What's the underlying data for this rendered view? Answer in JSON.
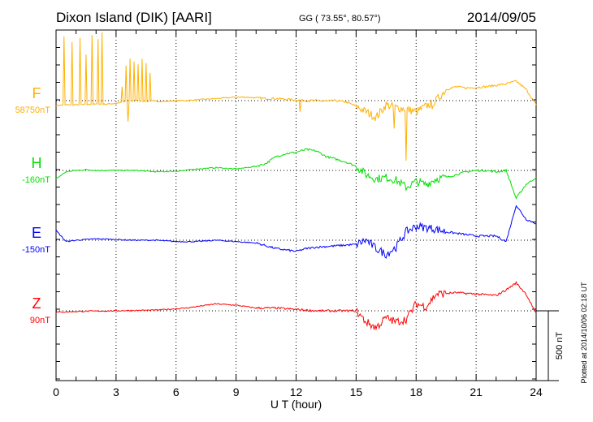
{
  "header": {
    "station": "Dixon Island (DIK)  [AARI]",
    "coords": "GG ( 73.55°,  80.57°)",
    "date": "2014/09/05"
  },
  "footer": {
    "plotted": "Plotted at 2014/10/06 02:18 UT",
    "scale_label": "500 nT"
  },
  "chart_data": {
    "type": "line",
    "xlabel": "U T (hour)",
    "xlim": [
      0,
      24
    ],
    "xticks": [
      "0",
      "3",
      "6",
      "9",
      "12",
      "15",
      "18",
      "21",
      "24"
    ],
    "scale_bar_nT": 500,
    "grid": "dotted at every 3 h and at each component baseline",
    "series": [
      {
        "name": "F",
        "baseline_label": "58750nT",
        "color": "#ffb000",
        "x_step": 0.5,
        "values": [
          -35,
          -30,
          -30,
          -28,
          -25,
          -25,
          -20,
          -5,
          0,
          -5,
          -5,
          -5,
          0,
          0,
          5,
          10,
          15,
          20,
          25,
          25,
          20,
          15,
          15,
          10,
          5,
          0,
          0,
          -5,
          0,
          -10,
          -40,
          -80,
          -120,
          -30,
          -50,
          -60,
          -80,
          -40,
          0,
          80,
          100,
          90,
          95,
          100,
          110,
          120,
          140,
          80,
          -30
        ],
        "spikes": [
          [
            0.4,
            460
          ],
          [
            0.8,
            420
          ],
          [
            1.2,
            450
          ],
          [
            1.5,
            330
          ],
          [
            1.8,
            470
          ],
          [
            2.1,
            440
          ],
          [
            2.3,
            490
          ],
          [
            3.3,
            100
          ],
          [
            3.5,
            250
          ],
          [
            3.6,
            -150
          ],
          [
            3.7,
            300
          ],
          [
            3.9,
            280
          ],
          [
            4.1,
            260
          ],
          [
            4.3,
            300
          ],
          [
            4.5,
            270
          ],
          [
            4.7,
            200
          ],
          [
            12.2,
            -80
          ],
          [
            16.9,
            -200
          ],
          [
            17.5,
            -430
          ],
          [
            18.8,
            -60
          ]
        ]
      },
      {
        "name": "H",
        "baseline_label": "-160nT",
        "color": "#00e000",
        "x_step": 0.5,
        "values": [
          -60,
          -10,
          0,
          5,
          0,
          0,
          0,
          0,
          0,
          -5,
          -10,
          -8,
          -5,
          0,
          10,
          15,
          20,
          15,
          10,
          20,
          30,
          50,
          100,
          120,
          130,
          150,
          140,
          100,
          80,
          60,
          30,
          -30,
          -60,
          -50,
          -70,
          -120,
          -80,
          -100,
          -60,
          -50,
          -30,
          -10,
          0,
          0,
          -10,
          0,
          -200,
          -100,
          -50
        ]
      },
      {
        "name": "E",
        "baseline_label": "-150nT",
        "color": "#0000ff",
        "x_step": 0.5,
        "values": [
          70,
          -10,
          0,
          5,
          10,
          8,
          5,
          2,
          0,
          0,
          0,
          -5,
          -10,
          -10,
          -10,
          -5,
          0,
          -5,
          -10,
          -15,
          -20,
          -40,
          -60,
          -70,
          -80,
          -60,
          -50,
          -45,
          -40,
          -35,
          -30,
          0,
          -60,
          -100,
          -50,
          60,
          100,
          90,
          80,
          60,
          50,
          40,
          30,
          30,
          30,
          -10,
          250,
          150,
          120
        ]
      },
      {
        "name": "Z",
        "baseline_label": "90nT",
        "color": "#ff0000",
        "x_step": 0.5,
        "values": [
          -10,
          -8,
          -5,
          -3,
          -2,
          -1,
          0,
          2,
          3,
          4,
          5,
          10,
          15,
          20,
          30,
          40,
          50,
          45,
          40,
          30,
          20,
          20,
          20,
          15,
          10,
          5,
          0,
          0,
          0,
          0,
          0,
          -80,
          -120,
          -50,
          -80,
          -60,
          50,
          30,
          120,
          125,
          130,
          125,
          120,
          115,
          110,
          150,
          200,
          120,
          -20
        ]
      }
    ]
  }
}
